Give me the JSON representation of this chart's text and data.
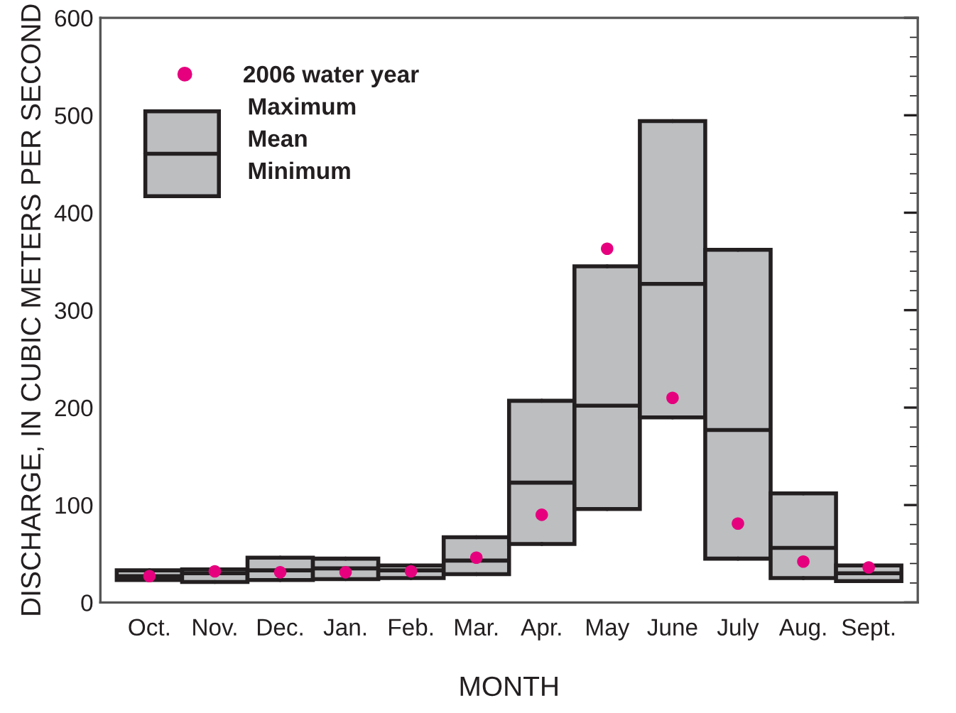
{
  "chart_data": {
    "type": "box",
    "categories": [
      "Oct.",
      "Nov.",
      "Dec.",
      "Jan.",
      "Feb.",
      "Mar.",
      "Apr.",
      "May",
      "June",
      "July",
      "Aug.",
      "Sept."
    ],
    "boxes": [
      {
        "low": 23,
        "q1": 23,
        "median": 27,
        "q3": 33,
        "high": 33
      },
      {
        "low": 21,
        "q1": 21,
        "median": 30,
        "q3": 34,
        "high": 34
      },
      {
        "low": 23,
        "q1": 23,
        "median": 33,
        "q3": 46,
        "high": 46
      },
      {
        "low": 24,
        "q1": 24,
        "median": 35,
        "q3": 45,
        "high": 45
      },
      {
        "low": 25,
        "q1": 25,
        "median": 33,
        "q3": 38,
        "high": 38
      },
      {
        "low": 29,
        "q1": 29,
        "median": 43,
        "q3": 67,
        "high": 67
      },
      {
        "low": 60,
        "q1": 60,
        "median": 123,
        "q3": 207,
        "high": 207
      },
      {
        "low": 96,
        "q1": 96,
        "median": 202,
        "q3": 345,
        "high": 345
      },
      {
        "low": 190,
        "q1": 190,
        "median": 327,
        "q3": 494,
        "high": 494
      },
      {
        "low": 45,
        "q1": 45,
        "median": 177,
        "q3": 362,
        "high": 362
      },
      {
        "low": 25,
        "q1": 25,
        "median": 56,
        "q3": 112,
        "high": 112
      },
      {
        "low": 22,
        "q1": 22,
        "median": 30,
        "q3": 38,
        "high": 38
      }
    ],
    "color": "#bcbec0",
    "series": [
      {
        "name": "2006 water year",
        "type": "scatter",
        "color": "#e6007e",
        "x": [
          "Oct.",
          "Nov.",
          "Dec.",
          "Jan.",
          "Feb.",
          "Mar.",
          "Apr.",
          "May",
          "June",
          "July",
          "Aug.",
          "Sept."
        ],
        "values": [
          27,
          32,
          31,
          31,
          32,
          46,
          90,
          363,
          210,
          81,
          42,
          36
        ]
      }
    ],
    "marker": "circle",
    "xlabel": "MONTH",
    "ylabel": "DISCHARGE, IN CUBIC METERS PER SECOND",
    "ylim": [
      0,
      600
    ],
    "yticks": [
      0,
      100,
      200,
      300,
      400,
      500,
      600
    ],
    "legend": "top left",
    "annotations": [
      "Maximum",
      "Mean",
      "Minimum"
    ],
    "grid": false
  }
}
